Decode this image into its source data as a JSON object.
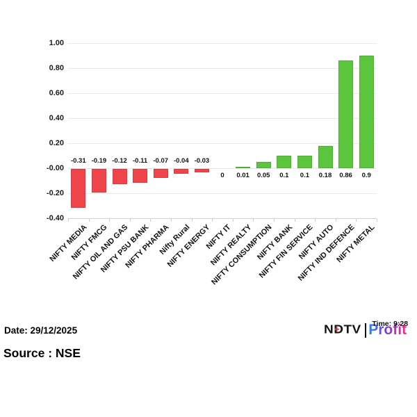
{
  "chart_data": {
    "type": "bar",
    "categories": [
      "NIFTY MEDIA",
      "NIFTY FMCG",
      "NIFTY OIL AND GAS",
      "NIFTY PSU BANK",
      "NIFTY PHARMA",
      "Nifty Rural",
      "NIFTY ENERGY",
      "NIFTY IT",
      "NIFTY REALTY",
      "NIFTY CONSUMPTION",
      "NIFTY BANK",
      "NIFTY FIN SERVICE",
      "NIFTY AUTO",
      "NIFTY IND DEFENCE",
      "NIFTY METAL"
    ],
    "values": [
      -0.31,
      -0.19,
      -0.12,
      -0.11,
      -0.07,
      -0.04,
      -0.03,
      0,
      0.01,
      0.05,
      0.1,
      0.1,
      0.18,
      0.86,
      0.9
    ],
    "value_labels": [
      "-0.31",
      "-0.19",
      "-0.12",
      "-0.11",
      "-0.07",
      "-0.04",
      "-0.03",
      "0",
      "0.01",
      "0.05",
      "0.1",
      "0.1",
      "0.18",
      "0.86",
      "0.9"
    ],
    "ytick_labels": [
      "1.00",
      "0.80",
      "0.60",
      "0.40",
      "0.20",
      "-0.00",
      "-0.20",
      "-0.40"
    ],
    "ytick_values": [
      1.0,
      0.8,
      0.6,
      0.4,
      0.2,
      0,
      -0.2,
      -0.4
    ],
    "ylim": [
      -0.4,
      1.0
    ],
    "grid": true,
    "legend": false,
    "xlabel": "",
    "ylabel": "",
    "colors": {
      "positive": "#5cc53e",
      "negative": "#ef4449",
      "positive_border": "#4db134",
      "negative_border": "#dd393f"
    }
  },
  "footer": {
    "date_label": "Date: 29/12/2025",
    "source_label": "Source : NSE",
    "time_overlay": "Time: 9:28",
    "logo": {
      "ndtv": "NDTV",
      "plus": "+",
      "profit": "Profit"
    }
  }
}
